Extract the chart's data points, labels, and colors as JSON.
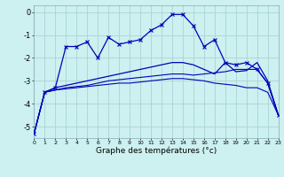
{
  "x": [
    0,
    1,
    2,
    3,
    4,
    5,
    6,
    7,
    8,
    9,
    10,
    11,
    12,
    13,
    14,
    15,
    16,
    17,
    18,
    19,
    20,
    21,
    22,
    23
  ],
  "main_y": [
    -5.3,
    -3.5,
    -3.3,
    -1.5,
    -1.5,
    -1.3,
    -2.0,
    -1.1,
    -1.4,
    -1.3,
    -1.2,
    -0.8,
    -0.55,
    -0.1,
    -0.1,
    -0.6,
    -1.5,
    -1.2,
    -2.2,
    -2.3,
    -2.2,
    -2.5,
    -3.1,
    -4.5
  ],
  "line_a": [
    -5.3,
    -3.5,
    -3.3,
    -3.2,
    -3.1,
    -3.0,
    -2.9,
    -2.8,
    -2.7,
    -2.6,
    -2.5,
    -2.4,
    -2.3,
    -2.2,
    -2.2,
    -2.3,
    -2.5,
    -2.7,
    -2.2,
    -2.6,
    -2.55,
    -2.2,
    -3.0,
    -4.5
  ],
  "line_b": [
    -5.3,
    -3.5,
    -3.4,
    -3.3,
    -3.25,
    -3.2,
    -3.1,
    -3.0,
    -2.95,
    -2.9,
    -2.85,
    -2.8,
    -2.75,
    -2.7,
    -2.7,
    -2.75,
    -2.7,
    -2.65,
    -2.6,
    -2.5,
    -2.5,
    -2.5,
    -3.1,
    -4.5
  ],
  "line_c": [
    -5.3,
    -3.5,
    -3.4,
    -3.35,
    -3.3,
    -3.25,
    -3.2,
    -3.15,
    -3.1,
    -3.1,
    -3.05,
    -3.0,
    -2.95,
    -2.9,
    -2.9,
    -2.95,
    -3.0,
    -3.1,
    -3.15,
    -3.2,
    -3.3,
    -3.3,
    -3.5,
    -4.5
  ],
  "background_color": "#cdf0f0",
  "grid_color": "#aad4d4",
  "line_color": "#0000bb",
  "xlabel": "Graphe des températures (°c)",
  "yticks": [
    0,
    -1,
    -2,
    -3,
    -4,
    -5
  ],
  "xticks": [
    0,
    1,
    2,
    3,
    4,
    5,
    6,
    7,
    8,
    9,
    10,
    11,
    12,
    13,
    14,
    15,
    16,
    17,
    18,
    19,
    20,
    21,
    22,
    23
  ],
  "xlim": [
    0,
    23
  ],
  "ylim": [
    -5.5,
    0.3
  ]
}
